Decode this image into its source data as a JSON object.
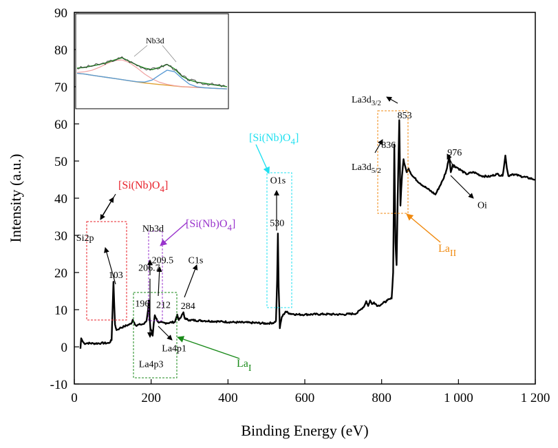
{
  "chart_data": {
    "type": "line",
    "xlabel": "Binding Energy (eV)",
    "ylabel": "Intensity (a.u.)",
    "xlim": [
      0,
      1200
    ],
    "ylim": [
      -10,
      90
    ],
    "x_ticks": [
      0,
      200,
      400,
      600,
      800,
      1000,
      1200
    ],
    "x_tick_labels": [
      "0",
      "200",
      "400",
      "600",
      "800",
      "1 000",
      "1 200"
    ],
    "y_ticks": [
      -10,
      0,
      10,
      20,
      30,
      40,
      50,
      60,
      70,
      80,
      90
    ],
    "y_tick_labels": [
      "-10",
      "0",
      "10",
      "20",
      "30",
      "40",
      "50",
      "60",
      "70",
      "80",
      "90"
    ],
    "colors": {
      "spectrum": "#000000",
      "red": "#e8202a",
      "cyan": "#20e0f0",
      "green": "#1a8a1a",
      "purple": "#9933cc",
      "orange": "#f08a10"
    },
    "series": [
      {
        "x": [
          16,
          18,
          22,
          26,
          35,
          50,
          70,
          90,
          97,
          100,
          102,
          104,
          106,
          110,
          118,
          130,
          148,
          152,
          160,
          172,
          182,
          188,
          192,
          194,
          196,
          198,
          201,
          204,
          206.7,
          209.5,
          212,
          220,
          240,
          262,
          268,
          272,
          278,
          284,
          287,
          292,
          300,
          340,
          380,
          420,
          460,
          500,
          520,
          525,
          528,
          530,
          532,
          535,
          540,
          550,
          560,
          580,
          600,
          650,
          700,
          735,
          745,
          755,
          760,
          765,
          770,
          775,
          780,
          790,
          800,
          815,
          826,
          830,
          833,
          836,
          839,
          842,
          846,
          849,
          853,
          857,
          860,
          865,
          870,
          880,
          900,
          920,
          940,
          960,
          970,
          976,
          980,
          985,
          1000,
          1020,
          1040,
          1060,
          1080,
          1100,
          1115,
          1122,
          1126,
          1130,
          1140,
          1160,
          1200
        ],
        "y": [
          -0.5,
          2.3,
          1.4,
          0.9,
          1.0,
          0.9,
          1.0,
          1.0,
          1.8,
          11.0,
          17.5,
          11.0,
          6.0,
          4.5,
          5.0,
          5.5,
          6.2,
          7.3,
          5.8,
          6.0,
          6.2,
          7.0,
          10.0,
          12.5,
          8.0,
          5.0,
          4.4,
          3.0,
          6.2,
          8.5,
          7.8,
          6.5,
          6.4,
          6.7,
          8.7,
          7.2,
          8.0,
          9.3,
          7.8,
          7.4,
          7.2,
          7.0,
          6.8,
          6.6,
          6.5,
          6.3,
          6.5,
          7.0,
          18.0,
          30.5,
          16.0,
          5.0,
          8.0,
          9.5,
          9.0,
          8.7,
          8.7,
          8.8,
          8.7,
          9.0,
          10.0,
          11.0,
          12.3,
          11.0,
          12.5,
          11.5,
          12.0,
          11.0,
          11.5,
          12.5,
          13.0,
          20.0,
          54.5,
          28.0,
          22.0,
          41.0,
          61.0,
          38.0,
          46.0,
          50.5,
          49.0,
          47.0,
          48.0,
          46.0,
          44.0,
          42.5,
          41.0,
          45.0,
          48.0,
          51.5,
          47.0,
          49.0,
          48.0,
          46.5,
          47.0,
          46.0,
          45.8,
          46.5,
          46.0,
          51.5,
          48.0,
          46.0,
          46.5,
          46.0,
          45.0
        ]
      }
    ],
    "inset": {
      "label": "Nb3d",
      "envelope_x": [
        0,
        0.05,
        0.1,
        0.15,
        0.2,
        0.25,
        0.3,
        0.35,
        0.4,
        0.45,
        0.5,
        0.55,
        0.6,
        0.65,
        0.7,
        0.75,
        0.8,
        0.85,
        0.9,
        0.95,
        1.0
      ],
      "envelope_y": [
        75.0,
        75.2,
        75.6,
        76.0,
        76.5,
        77.2,
        77.8,
        76.8,
        75.8,
        75.0,
        74.6,
        75.2,
        76.0,
        74.8,
        72.8,
        71.8,
        71.2,
        70.9,
        70.6,
        70.3,
        70.0
      ],
      "baseline_y": [
        73.6,
        73.4,
        73.1,
        72.8,
        72.5,
        72.2,
        71.9,
        71.6,
        71.3,
        71.0,
        70.8,
        70.6,
        70.4,
        70.2,
        70.0,
        69.9,
        69.8,
        69.7,
        69.6,
        69.5,
        69.4
      ]
    },
    "annotations": [
      {
        "text": "Si2p",
        "x": 28,
        "y": 28.5
      },
      {
        "text": "103",
        "x": 108,
        "y": 18.5
      },
      {
        "text": "Nb3d",
        "x": 205,
        "y": 31
      },
      {
        "text": "206.7",
        "x": 195,
        "y": 20.5
      },
      {
        "text": "209.5",
        "x": 230,
        "y": 22.5
      },
      {
        "text": "196",
        "x": 177,
        "y": 10.8
      },
      {
        "text": "212",
        "x": 232,
        "y": 10.5
      },
      {
        "text": "C1s",
        "x": 316,
        "y": 22.5
      },
      {
        "text": "284",
        "x": 296,
        "y": 10.2
      },
      {
        "text": "La4p3",
        "x": 200,
        "y": -5.5
      },
      {
        "text": "La4p1",
        "x": 260,
        "y": -1.2
      },
      {
        "text": "O1s",
        "x": 530,
        "y": 44
      },
      {
        "text": "530",
        "x": 528,
        "y": 32.5
      },
      {
        "text": "853",
        "x": 860,
        "y": 61.5
      },
      {
        "text": "836",
        "x": 818,
        "y": 53.5
      },
      {
        "text": "976",
        "x": 990,
        "y": 51.5
      },
      {
        "text": "Oi",
        "x": 1062,
        "y": 37.3
      }
    ],
    "callouts": [
      {
        "text": "[Si(Nb)O",
        "sub": "4",
        "subtype": "sub",
        "tail": "]",
        "color": "red"
      },
      {
        "text": "[Si(Nb)O",
        "sub": "4",
        "subtype": "sub",
        "tail": "]",
        "color": "purple"
      },
      {
        "text": "[Si(Nb)O",
        "sub": "4",
        "subtype": "sub",
        "tail": "]",
        "color": "cyan"
      },
      {
        "text": "La",
        "sub": "I",
        "subtype": "sub",
        "tail": "",
        "color": "green"
      },
      {
        "text": "La",
        "sub": "II",
        "subtype": "sub",
        "tail": "",
        "color": "orange"
      },
      {
        "text": "La3d",
        "sub": "3/2",
        "subtype": "sub",
        "tail": "",
        "color": "black"
      },
      {
        "text": "La3d",
        "sub": "5/2",
        "subtype": "sub",
        "tail": "",
        "color": "black"
      }
    ]
  }
}
